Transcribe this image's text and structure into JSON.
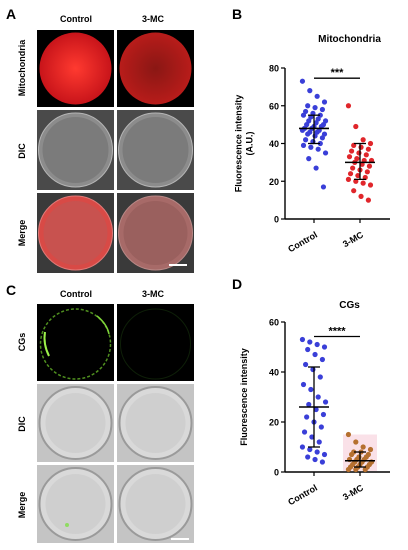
{
  "panels": {
    "A": {
      "letter": "A",
      "columns": [
        "Control",
        "3-MC"
      ],
      "rows": [
        "Mitochondria",
        "DIC",
        "Merge"
      ]
    },
    "B": {
      "letter": "B"
    },
    "C": {
      "letter": "C",
      "columns": [
        "Control",
        "3-MC"
      ],
      "rows": [
        "CGs",
        "DIC",
        "Merge"
      ]
    },
    "D": {
      "letter": "D"
    }
  },
  "colors": {
    "control_dots": "#3a3fd8",
    "treated_dots_B": "#e0262b",
    "treated_dots_D": "#b5702f",
    "treated_fill_D": "#f6c9d6",
    "mito": "#e8221f",
    "cg": "#7fe03a"
  },
  "chart_data": [
    {
      "type": "scatter",
      "title": "Mitochondria",
      "ylabel": "Fluorescence intensity (A.U.)",
      "ylabel_lines": [
        "Fluorescence intensity",
        "(A.U.)"
      ],
      "categories": [
        "Control",
        "3-MC"
      ],
      "ylim": [
        0,
        80
      ],
      "yticks": [
        "0",
        "20",
        "40",
        "60",
        "80"
      ],
      "significance": "***",
      "series": [
        {
          "category": "Control",
          "mean": 48,
          "sd_low": 40,
          "sd_high": 55,
          "values": [
            73,
            68,
            65,
            62,
            60,
            59,
            58,
            57,
            56,
            55,
            55,
            54,
            53,
            52,
            52,
            51,
            50,
            50,
            49,
            49,
            48,
            48,
            47,
            47,
            46,
            46,
            45,
            45,
            44,
            43,
            42,
            41,
            40,
            39,
            38,
            37,
            35,
            32,
            27,
            17
          ]
        },
        {
          "category": "3-MC",
          "mean": 30,
          "sd_low": 21,
          "sd_high": 40,
          "values": [
            60,
            49,
            42,
            40,
            39,
            38,
            37,
            36,
            35,
            34,
            33,
            32,
            31,
            31,
            30,
            29,
            28,
            27,
            26,
            25,
            24,
            23,
            22,
            21,
            20,
            19,
            18,
            15,
            12,
            10
          ]
        }
      ]
    },
    {
      "type": "scatter",
      "title": "CGs",
      "ylabel": "Fluorescence intensity",
      "ylabel_lines": [
        "Fluorescence intensity"
      ],
      "categories": [
        "Control",
        "3-MC"
      ],
      "ylim": [
        0,
        60
      ],
      "yticks": [
        "0",
        "20",
        "40",
        "60"
      ],
      "significance": "****",
      "series": [
        {
          "category": "Control",
          "mean": 26,
          "sd_low": 10,
          "sd_high": 42,
          "values": [
            53,
            52,
            51,
            50,
            49,
            47,
            45,
            43,
            41,
            38,
            35,
            33,
            30,
            28,
            27,
            25,
            23,
            22,
            20,
            18,
            16,
            14,
            12,
            10,
            9,
            8,
            7,
            6,
            5,
            4
          ]
        },
        {
          "category": "3-MC",
          "mean": 4.5,
          "sd_low": 2,
          "sd_high": 8,
          "values": [
            15,
            12,
            10,
            9,
            8,
            8,
            7,
            7,
            6,
            6,
            5,
            5,
            5,
            4,
            4,
            4,
            3,
            3,
            3,
            2,
            2,
            2,
            1,
            1,
            1
          ]
        }
      ]
    }
  ]
}
